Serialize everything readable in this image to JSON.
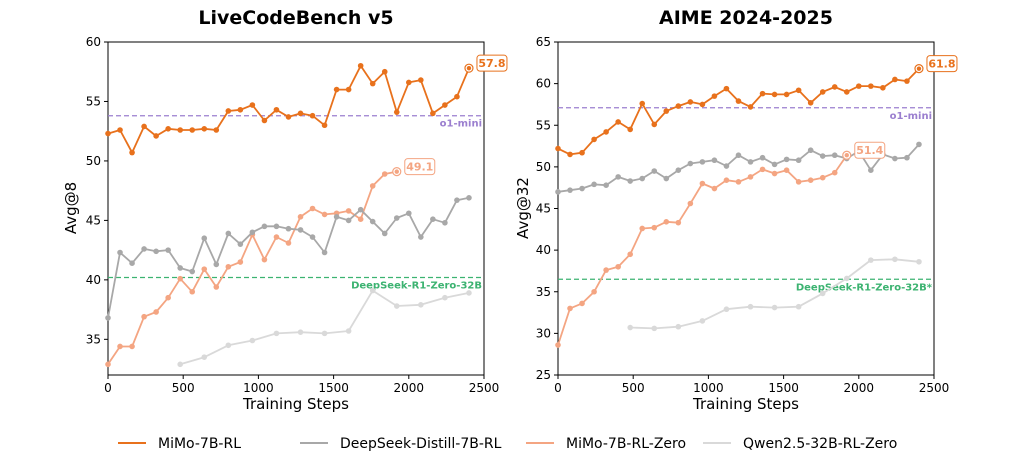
{
  "chart_data": [
    {
      "type": "line",
      "title": "LiveCodeBench v5",
      "xlabel": "Training Steps",
      "ylabel": "Avg@8",
      "xlim": [
        0,
        2500
      ],
      "ylim": [
        32,
        60
      ],
      "xticks": [
        0,
        500,
        1000,
        1500,
        2000,
        2500
      ],
      "yticks": [
        35,
        40,
        45,
        50,
        55,
        60
      ],
      "reference_lines": [
        {
          "name": "o1-mini",
          "value": 53.8,
          "color": "#9b7fcf"
        },
        {
          "name": "DeepSeek-R1-Zero-32B",
          "value": 40.2,
          "color": "#3cb371"
        }
      ],
      "end_labels": [
        {
          "series": "MiMo-7B-RL",
          "text": "57.8",
          "color": "#e8711c"
        },
        {
          "series": "MiMo-7B-RL-Zero",
          "text": "49.1",
          "color": "#f4a582"
        }
      ],
      "series": [
        {
          "name": "MiMo-7B-RL",
          "color": "#e8711c",
          "x": [
            0,
            80,
            160,
            240,
            320,
            400,
            480,
            560,
            640,
            720,
            800,
            880,
            960,
            1040,
            1120,
            1200,
            1280,
            1360,
            1440,
            1520,
            1600,
            1680,
            1760,
            1840,
            1920,
            2000,
            2080,
            2160,
            2240,
            2320,
            2400
          ],
          "y": [
            52.3,
            52.6,
            50.7,
            52.9,
            52.1,
            52.7,
            52.6,
            52.6,
            52.7,
            52.6,
            54.2,
            54.3,
            54.7,
            53.4,
            54.3,
            53.7,
            54.0,
            53.8,
            53.0,
            56.0,
            56.0,
            58.0,
            56.5,
            57.5,
            54.1,
            56.6,
            56.8,
            54.0,
            54.7,
            55.4,
            57.8
          ]
        },
        {
          "name": "DeepSeek-Distill-7B-RL",
          "color": "#a8a8a8",
          "x": [
            0,
            80,
            160,
            240,
            320,
            400,
            480,
            560,
            640,
            720,
            800,
            880,
            960,
            1040,
            1120,
            1200,
            1280,
            1360,
            1440,
            1520,
            1600,
            1680,
            1760,
            1840,
            1920,
            2000,
            2080,
            2160,
            2240,
            2320,
            2400
          ],
          "y": [
            36.8,
            42.3,
            41.4,
            42.6,
            42.4,
            42.5,
            41.0,
            40.7,
            43.5,
            41.3,
            43.9,
            43.0,
            44.0,
            44.5,
            44.5,
            44.3,
            44.2,
            43.6,
            42.3,
            45.3,
            45.0,
            45.9,
            44.9,
            43.9,
            45.2,
            45.6,
            43.6,
            45.1,
            44.8,
            46.7,
            46.9
          ]
        },
        {
          "name": "MiMo-7B-RL-Zero",
          "color": "#f4a582",
          "x": [
            0,
            80,
            160,
            240,
            320,
            400,
            480,
            560,
            640,
            720,
            800,
            880,
            960,
            1040,
            1120,
            1200,
            1280,
            1360,
            1440,
            1520,
            1600,
            1680,
            1760,
            1840,
            1920
          ],
          "y": [
            32.9,
            34.4,
            34.4,
            36.9,
            37.3,
            38.5,
            40.1,
            39.0,
            40.9,
            39.4,
            41.1,
            41.5,
            43.8,
            41.7,
            43.6,
            43.1,
            45.3,
            46.0,
            45.5,
            45.6,
            45.8,
            45.1,
            47.9,
            48.9,
            49.1
          ]
        },
        {
          "name": "Qwen2.5-32B-RL-Zero",
          "color": "#d9d9d9",
          "x": [
            480,
            640,
            800,
            960,
            1120,
            1280,
            1440,
            1600,
            1760,
            1920,
            2080,
            2240,
            2400
          ],
          "y": [
            32.9,
            33.5,
            34.5,
            34.9,
            35.5,
            35.6,
            35.5,
            35.7,
            39.1,
            37.8,
            37.9,
            38.5,
            38.9
          ]
        }
      ]
    },
    {
      "type": "line",
      "title": "AIME 2024-2025",
      "xlabel": "Training Steps",
      "ylabel": "Avg@32",
      "xlim": [
        0,
        2500
      ],
      "ylim": [
        25,
        65
      ],
      "xticks": [
        0,
        500,
        1000,
        1500,
        2000,
        2500
      ],
      "yticks": [
        25,
        30,
        35,
        40,
        45,
        50,
        55,
        60,
        65
      ],
      "reference_lines": [
        {
          "name": "o1-mini",
          "value": 57.1,
          "color": "#9b7fcf"
        },
        {
          "name": "DeepSeek-R1-Zero-32B*",
          "value": 36.5,
          "color": "#3cb371"
        }
      ],
      "end_labels": [
        {
          "series": "MiMo-7B-RL",
          "text": "61.8",
          "color": "#e8711c"
        },
        {
          "series": "MiMo-7B-RL-Zero",
          "text": "51.4",
          "color": "#f4a582"
        }
      ],
      "series": [
        {
          "name": "MiMo-7B-RL",
          "color": "#e8711c",
          "x": [
            0,
            80,
            160,
            240,
            320,
            400,
            480,
            560,
            640,
            720,
            800,
            880,
            960,
            1040,
            1120,
            1200,
            1280,
            1360,
            1440,
            1520,
            1600,
            1680,
            1760,
            1840,
            1920,
            2000,
            2080,
            2160,
            2240,
            2320,
            2400
          ],
          "y": [
            52.2,
            51.5,
            51.7,
            53.3,
            54.2,
            55.4,
            54.5,
            57.6,
            55.1,
            56.7,
            57.3,
            57.8,
            57.5,
            58.5,
            59.4,
            57.9,
            57.2,
            58.8,
            58.7,
            58.7,
            59.2,
            57.7,
            59.0,
            59.6,
            59.0,
            59.7,
            59.7,
            59.5,
            60.5,
            60.3,
            61.8
          ]
        },
        {
          "name": "DeepSeek-Distill-7B-RL",
          "color": "#a8a8a8",
          "x": [
            0,
            80,
            160,
            240,
            320,
            400,
            480,
            560,
            640,
            720,
            800,
            880,
            960,
            1040,
            1120,
            1200,
            1280,
            1360,
            1440,
            1520,
            1600,
            1680,
            1760,
            1840,
            1920,
            2000,
            2080,
            2160,
            2240,
            2320,
            2400
          ],
          "y": [
            47.0,
            47.2,
            47.4,
            47.9,
            47.8,
            48.8,
            48.3,
            48.6,
            49.5,
            48.6,
            49.6,
            50.4,
            50.6,
            50.8,
            50.1,
            51.4,
            50.6,
            51.1,
            50.3,
            50.9,
            50.8,
            52.0,
            51.3,
            51.4,
            51.0,
            51.9,
            49.6,
            51.5,
            51.0,
            51.1,
            52.7
          ]
        },
        {
          "name": "MiMo-7B-RL-Zero",
          "color": "#f4a582",
          "x": [
            0,
            80,
            160,
            240,
            320,
            400,
            480,
            560,
            640,
            720,
            800,
            880,
            960,
            1040,
            1120,
            1200,
            1280,
            1360,
            1440,
            1520,
            1600,
            1680,
            1760,
            1840,
            1920
          ],
          "y": [
            28.6,
            33.0,
            33.6,
            35.0,
            37.6,
            38.0,
            39.5,
            42.6,
            42.7,
            43.4,
            43.3,
            45.6,
            48.0,
            47.4,
            48.4,
            48.2,
            48.8,
            49.7,
            49.2,
            49.6,
            48.2,
            48.4,
            48.7,
            49.3,
            51.4
          ]
        },
        {
          "name": "Qwen2.5-32B-RL-Zero",
          "color": "#d9d9d9",
          "x": [
            480,
            640,
            800,
            960,
            1120,
            1280,
            1440,
            1600,
            1760,
            1920,
            2080,
            2240,
            2400
          ],
          "y": [
            30.7,
            30.6,
            30.8,
            31.5,
            32.9,
            33.2,
            33.1,
            33.2,
            34.8,
            36.6,
            38.8,
            38.9,
            38.6
          ]
        }
      ]
    }
  ],
  "legend": {
    "placement": "bottom",
    "items": [
      {
        "label": "MiMo-7B-RL",
        "color": "#e8711c"
      },
      {
        "label": "DeepSeek-Distill-7B-RL",
        "color": "#a8a8a8"
      },
      {
        "label": "MiMo-7B-RL-Zero",
        "color": "#f4a582"
      },
      {
        "label": "Qwen2.5-32B-RL-Zero",
        "color": "#d9d9d9"
      }
    ]
  }
}
